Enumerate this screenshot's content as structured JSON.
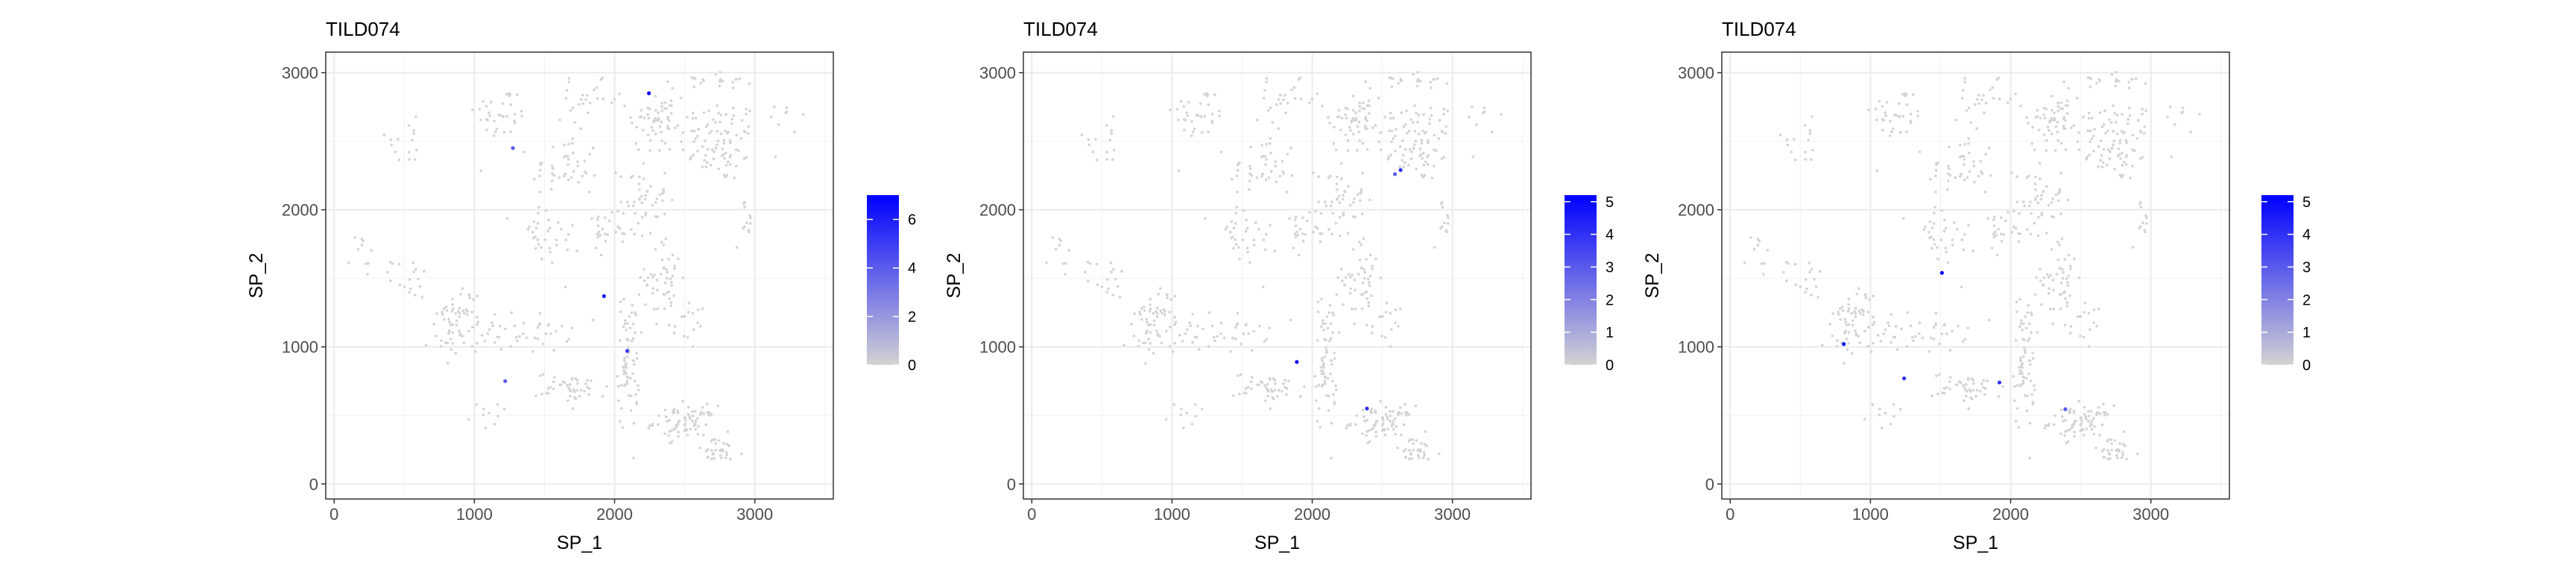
{
  "chart_data": [
    {
      "type": "scatter",
      "title": "TILD074",
      "xlabel": "SP_1",
      "ylabel": "SP_2",
      "xlim": [
        -60,
        3560
      ],
      "ylim": [
        -110,
        3150
      ],
      "xticks": [
        0,
        1000,
        2000,
        3000
      ],
      "yticks": [
        0,
        1000,
        2000,
        3000
      ],
      "grid": true,
      "legend": {
        "placement": "right",
        "type": "colorbar",
        "range": [
          0,
          7
        ],
        "ticks": [
          0,
          2,
          4,
          6
        ],
        "low_color": "#d3d3d3",
        "high_color": "#0000ff"
      },
      "highlighted_points": [
        {
          "x": 2245,
          "y": 2850,
          "value": 7
        },
        {
          "x": 1275,
          "y": 2450,
          "value": 4
        },
        {
          "x": 1925,
          "y": 1370,
          "value": 6
        },
        {
          "x": 2090,
          "y": 970,
          "value": 5
        },
        {
          "x": 1220,
          "y": 750,
          "value": 4
        }
      ]
    },
    {
      "type": "scatter",
      "title": "TILD074",
      "xlabel": "SP_1",
      "ylabel": "SP_2",
      "xlim": [
        -60,
        3560
      ],
      "ylim": [
        -110,
        3150
      ],
      "xticks": [
        0,
        1000,
        2000,
        3000
      ],
      "yticks": [
        0,
        1000,
        2000,
        3000
      ],
      "grid": true,
      "legend": {
        "placement": "right",
        "type": "colorbar",
        "range": [
          0,
          5.2
        ],
        "ticks": [
          0,
          1,
          2,
          3,
          4,
          5
        ],
        "low_color": "#d3d3d3",
        "high_color": "#0000ff"
      },
      "highlighted_points": [
        {
          "x": 2630,
          "y": 2290,
          "value": 4
        },
        {
          "x": 2590,
          "y": 2260,
          "value": 3
        },
        {
          "x": 1890,
          "y": 890,
          "value": 5
        },
        {
          "x": 2390,
          "y": 550,
          "value": 4
        }
      ]
    },
    {
      "type": "scatter",
      "title": "TILD074",
      "xlabel": "SP_1",
      "ylabel": "SP_2",
      "xlim": [
        -60,
        3560
      ],
      "ylim": [
        -110,
        3150
      ],
      "xticks": [
        0,
        1000,
        2000,
        3000
      ],
      "yticks": [
        0,
        1000,
        2000,
        3000
      ],
      "grid": true,
      "legend": {
        "placement": "right",
        "type": "colorbar",
        "range": [
          0,
          5.2
        ],
        "ticks": [
          0,
          1,
          2,
          3,
          4,
          5
        ],
        "low_color": "#d3d3d3",
        "high_color": "#0000ff"
      },
      "highlighted_points": [
        {
          "x": 1510,
          "y": 1540,
          "value": 5
        },
        {
          "x": 810,
          "y": 1020,
          "value": 5
        },
        {
          "x": 1240,
          "y": 770,
          "value": 4
        },
        {
          "x": 1920,
          "y": 740,
          "value": 4
        },
        {
          "x": 2390,
          "y": 545,
          "value": 3
        }
      ]
    }
  ]
}
